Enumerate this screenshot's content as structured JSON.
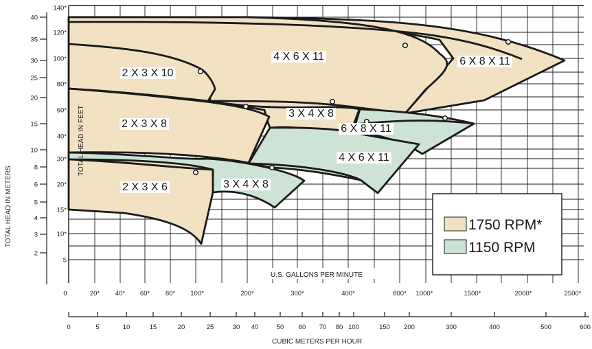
{
  "chart_data": {
    "type": "area",
    "ylabel_left": "TOTAL HEAD IN METERS",
    "ylabel_inner": "TOTAL HEAD IN FEET",
    "xlabel_gpm": "U.S. GALLONS PER MINUTE",
    "xlabel_m3h": "CUBIC METERS PER HOUR",
    "meters_ticks": [
      "40",
      "35",
      "30",
      "25",
      "20",
      "15",
      "10",
      "8",
      "6",
      "5",
      "4",
      "3",
      "2"
    ],
    "feet_ticks": [
      "140*",
      "120*",
      "100*",
      "80*",
      "60*",
      "40*",
      "30*",
      "20*",
      "15*",
      "10*",
      "5"
    ],
    "gpm_ticks": [
      "0",
      "20*",
      "40*",
      "60*",
      "80*",
      "100*",
      "200*",
      "300*",
      "400*",
      "800*",
      "1000*",
      "1500*",
      "2000*",
      "2500*"
    ],
    "m3h_ticks": [
      "0",
      "5",
      "10",
      "15",
      "20",
      "25",
      "30",
      "40",
      "50",
      "60",
      "70",
      "80",
      "100",
      "150",
      "200",
      "300",
      "400",
      "500",
      "600"
    ],
    "legend": [
      {
        "label": "1750 RPM*",
        "color": "#f2e1c2"
      },
      {
        "label": "1150 RPM",
        "color": "#cde3d5"
      }
    ],
    "colors": {
      "rpm_1750": "#f2e1c2",
      "rpm_1150": "#cde3d5",
      "outline": "#1a1a1a"
    },
    "series": [
      {
        "name": "2 X 3 X 6",
        "rpm": "1750 RPM*",
        "gpm_min": 0,
        "gpm_max": 105,
        "head_ft_max": 30,
        "head_ft_min": 8
      },
      {
        "name": "2 X 3 X 8",
        "rpm": "1750 RPM*",
        "gpm_min": 0,
        "gpm_max": 240,
        "head_ft_max": 65,
        "head_ft_min": 30
      },
      {
        "name": "2 X 3 X 10",
        "rpm": "1750 RPM*",
        "gpm_min": 0,
        "gpm_max": 135,
        "head_ft_max": 108,
        "head_ft_min": 65
      },
      {
        "name": "3 X 4 X 8",
        "rpm": "1750 RPM*",
        "gpm_min": 180,
        "gpm_max": 420,
        "head_ft_max": 62,
        "head_ft_min": 32
      },
      {
        "name": "4 X 6 X 11",
        "rpm": "1750 RPM*",
        "gpm_min": 0,
        "gpm_max": 1000,
        "head_ft_max": 135,
        "head_ft_min": 58
      },
      {
        "name": "6 X 8 X 11",
        "rpm": "1750 RPM*",
        "gpm_min": 1000,
        "gpm_max": 2400,
        "head_ft_max": 130,
        "head_ft_min": 58
      },
      {
        "name": "3 X 4 X 8",
        "rpm": "1150 RPM",
        "gpm_min": 0,
        "gpm_max": 270,
        "head_ft_max": 30,
        "head_ft_min": 13
      },
      {
        "name": "4 X 6 X 11",
        "rpm": "1150 RPM",
        "gpm_min": 200,
        "gpm_max": 800,
        "head_ft_max": 50,
        "head_ft_min": 20
      },
      {
        "name": "6 X 8 X 11",
        "rpm": "1150 RPM",
        "gpm_min": 420,
        "gpm_max": 1500,
        "head_ft_max": 55,
        "head_ft_min": 33
      }
    ]
  }
}
